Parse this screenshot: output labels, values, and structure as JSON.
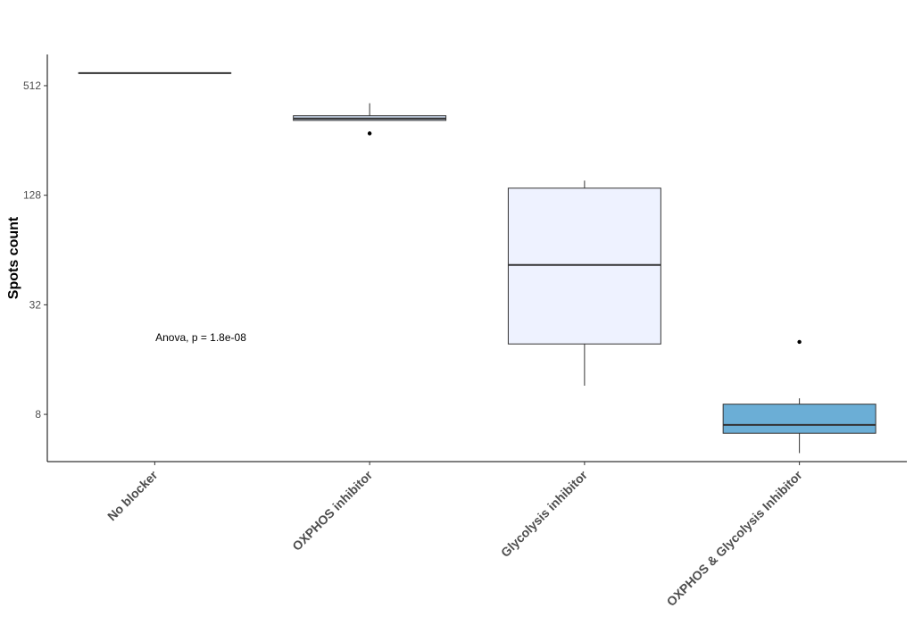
{
  "chart_data": {
    "type": "box",
    "ylabel": "Spots count",
    "xlabel": "",
    "y_scale": "log2",
    "ylim": [
      4.4,
      760
    ],
    "y_ticks": [
      8,
      32,
      128,
      512
    ],
    "y_tick_labels": [
      "8",
      "32",
      "128",
      "512"
    ],
    "categories": [
      "No blocker",
      "OXPHOS inhibitor",
      "Glycolysis inhibitor",
      "OXPHOS & Glycolysis Inhibitor"
    ],
    "colors": [
      "#b0b0b0",
      "#c7d4e8",
      "#eef2ff",
      "#6baed6"
    ],
    "boxes": [
      {
        "min": 600,
        "q1": 600,
        "median": 600,
        "q3": 600,
        "max": 600,
        "outliers": []
      },
      {
        "min": 330,
        "q1": 330,
        "median": 338,
        "q3": 350,
        "max": 410,
        "outliers": [
          280
        ]
      },
      {
        "min": 11.5,
        "q1": 19.5,
        "median": 53,
        "q3": 140,
        "max": 154,
        "outliers": []
      },
      {
        "min": 4.9,
        "q1": 6.3,
        "median": 7.0,
        "q3": 9.1,
        "max": 9.8,
        "outliers": [
          20
        ]
      }
    ],
    "annotation": "Anova, p = 1.8e-08"
  }
}
